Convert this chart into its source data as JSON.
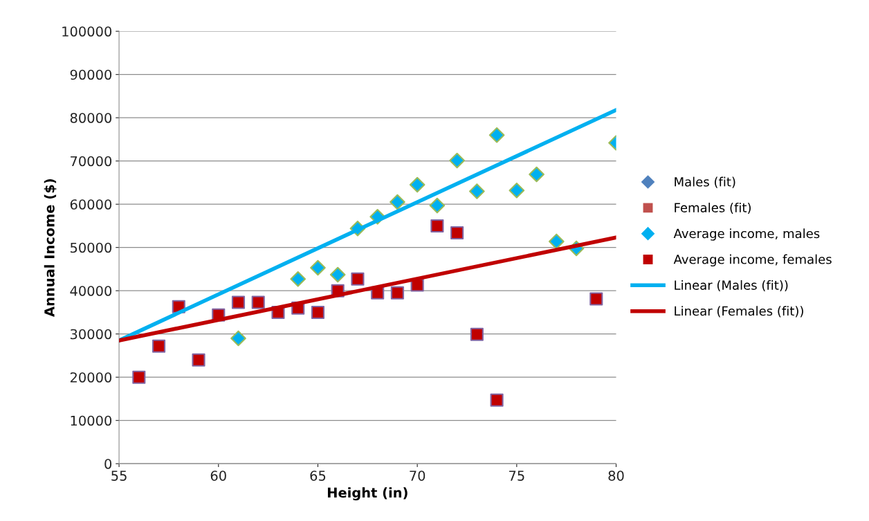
{
  "chart_data": {
    "type": "scatter",
    "xlabel": "Height (in)",
    "ylabel": "Annual Income ($)",
    "xlim": [
      55,
      80
    ],
    "xticks": [
      55,
      60,
      65,
      70,
      75,
      80
    ],
    "ylim": [
      0,
      100000
    ],
    "yticks": [
      0,
      10000,
      20000,
      30000,
      40000,
      50000,
      60000,
      70000,
      80000,
      90000,
      100000
    ],
    "grid": "y",
    "legend": "right",
    "series": [
      {
        "name": "Males (fit)",
        "marker": "diamond",
        "color": "#4f81bd"
      },
      {
        "name": "Females (fit)",
        "marker": "square",
        "color": "#c0504d"
      },
      {
        "name": "Average income, males",
        "marker": "diamond",
        "color": "#00b0f0",
        "x": [
          61,
          62,
          63,
          64,
          65,
          66,
          67,
          68,
          69,
          70,
          71,
          72,
          73,
          74,
          75,
          76,
          77,
          78,
          80
        ],
        "values": [
          29000,
          null,
          null,
          42700,
          45300,
          43700,
          54400,
          57100,
          60500,
          64500,
          59700,
          70100,
          63000,
          76000,
          63200,
          66900,
          51400,
          49800,
          74200
        ]
      },
      {
        "name": "Average income, females",
        "marker": "square",
        "color": "#c00000",
        "x": [
          56,
          57,
          58,
          59,
          60,
          61,
          62,
          63,
          64,
          65,
          66,
          67,
          68,
          69,
          70,
          71,
          72,
          73,
          74,
          79
        ],
        "values": [
          20000,
          27200,
          36300,
          24000,
          34400,
          37300,
          37300,
          35000,
          36000,
          35000,
          40000,
          42700,
          39500,
          39500,
          41300,
          55000,
          53400,
          29900,
          14700,
          38100
        ]
      },
      {
        "name": "Linear (Males (fit))",
        "type": "line",
        "line_style": "solid",
        "color": "#00b0f0",
        "x": [
          55,
          80
        ],
        "values": [
          28500,
          81800
        ]
      },
      {
        "name": "Linear (Females (fit))",
        "type": "line",
        "line_style": "solid",
        "color": "#c00000",
        "x": [
          55,
          80
        ],
        "values": [
          28500,
          52300
        ]
      }
    ]
  }
}
